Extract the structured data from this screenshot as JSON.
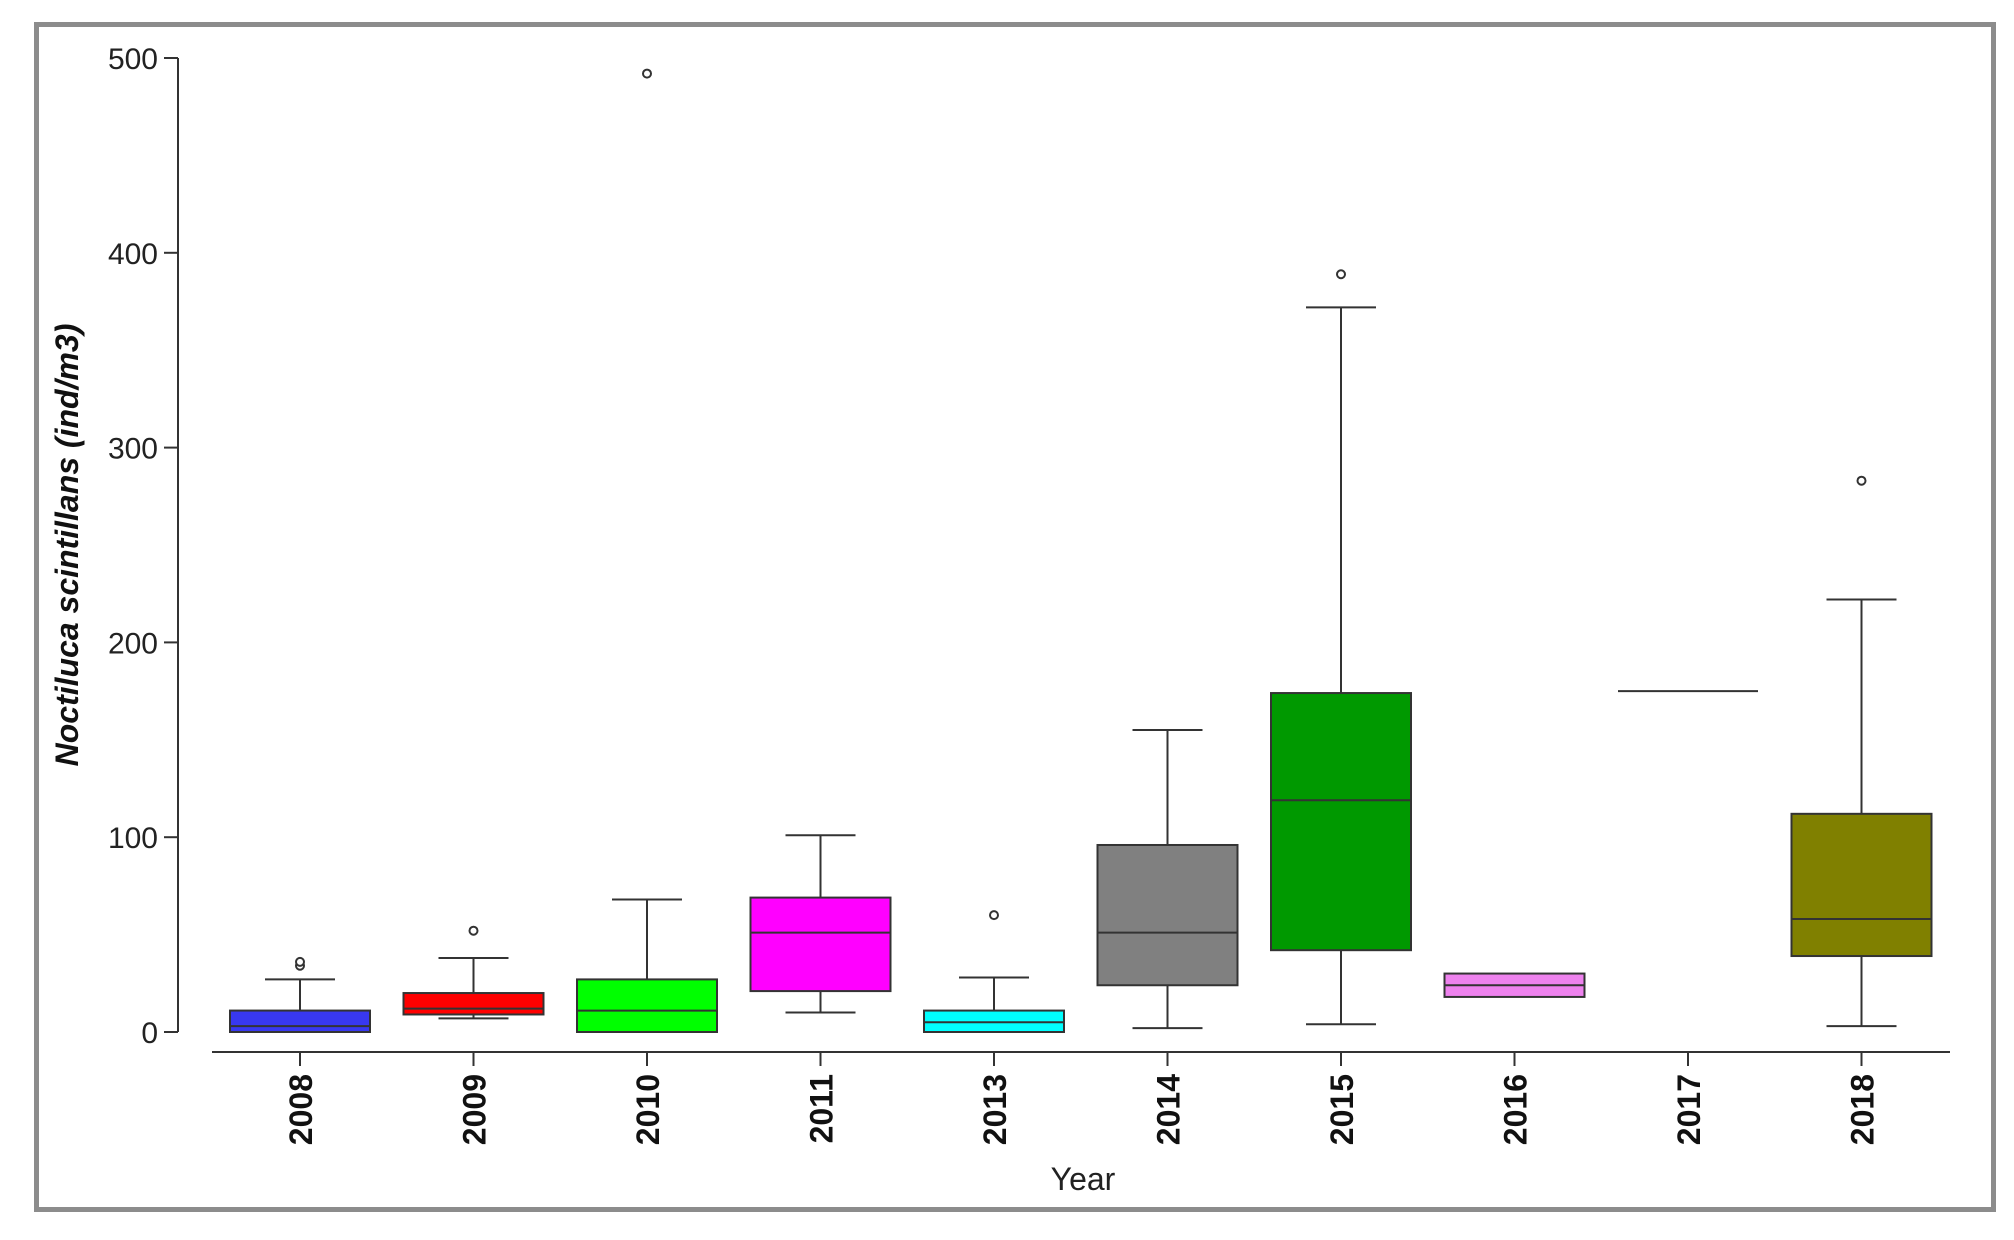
{
  "chart_data": {
    "type": "box",
    "xlabel": "Year",
    "ylabel": "Noctiluca scintillans (ind/m3)",
    "ylim": [
      0,
      500
    ],
    "yticks": [
      0,
      100,
      200,
      300,
      400,
      500
    ],
    "grid": false,
    "categories": [
      "2008",
      "2009",
      "2010",
      "2011",
      "2013",
      "2014",
      "2015",
      "2016",
      "2017",
      "2018"
    ],
    "boxes": [
      {
        "year": "2008",
        "color": "#3838f0",
        "min": 0,
        "q1": 0,
        "median": 3,
        "q3": 11,
        "max": 27,
        "outliers": [
          34,
          36
        ]
      },
      {
        "year": "2009",
        "color": "#ff0000",
        "min": 7,
        "q1": 9,
        "median": 12,
        "q3": 20,
        "max": 38,
        "outliers": [
          52
        ]
      },
      {
        "year": "2010",
        "color": "#00ff00",
        "min": 0,
        "q1": 0,
        "median": 11,
        "q3": 27,
        "max": 68,
        "outliers": [
          492
        ]
      },
      {
        "year": "2011",
        "color": "#ff00ff",
        "min": 10,
        "q1": 21,
        "median": 51,
        "q3": 69,
        "max": 101,
        "outliers": []
      },
      {
        "year": "2013",
        "color": "#00ffff",
        "min": 0,
        "q1": 0,
        "median": 5,
        "q3": 11,
        "max": 28,
        "outliers": [
          60
        ]
      },
      {
        "year": "2014",
        "color": "#808080",
        "min": 2,
        "q1": 24,
        "median": 51,
        "q3": 96,
        "max": 155,
        "outliers": []
      },
      {
        "year": "2015",
        "color": "#009900",
        "min": 4,
        "q1": 42,
        "median": 119,
        "q3": 174,
        "max": 372,
        "outliers": [
          389
        ]
      },
      {
        "year": "2016",
        "color": "#ee82ee",
        "min": 18,
        "q1": 18,
        "median": 24,
        "q3": 30,
        "max": 30,
        "outliers": []
      },
      {
        "year": "2017",
        "color": "#ffffff",
        "min": 175,
        "q1": 175,
        "median": 175,
        "q3": 175,
        "max": 175,
        "outliers": []
      },
      {
        "year": "2018",
        "color": "#808000",
        "min": 3,
        "q1": 39,
        "median": 58,
        "q3": 112,
        "max": 222,
        "outliers": [
          283
        ]
      }
    ]
  }
}
